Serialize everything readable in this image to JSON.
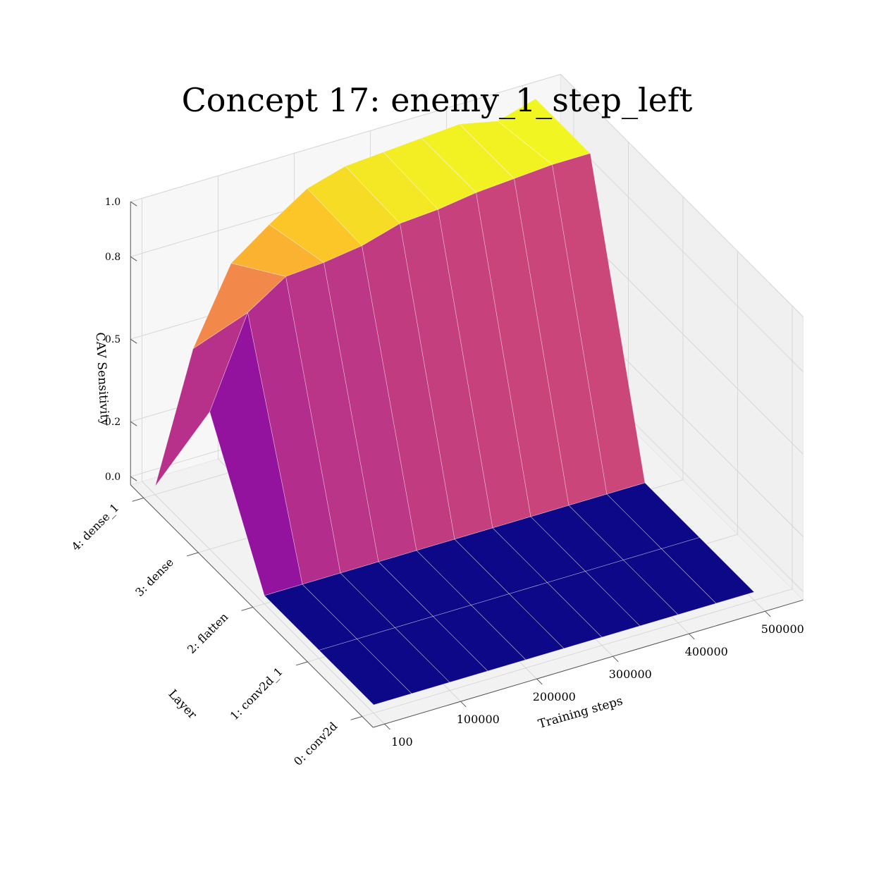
{
  "chart_data": {
    "type": "surface",
    "title": "Concept 17: enemy_1_step_left",
    "xlabel": "Training steps",
    "ylabel": "Layer",
    "zlabel": "CAV Sensitivity",
    "colormap": "plasma",
    "x_ticks": [
      "100",
      "100000",
      "200000",
      "300000",
      "400000",
      "500000"
    ],
    "y_ticks": [
      "0: conv2d",
      "1: conv2d_1",
      "2: flatten",
      "3: dense",
      "4: dense_1"
    ],
    "z_ticks": [
      "0.0",
      "0.2",
      "0.5",
      "0.8",
      "1.0"
    ],
    "x": [
      100,
      50000,
      100000,
      150000,
      200000,
      250000,
      300000,
      350000,
      400000,
      450000,
      500000
    ],
    "layers": [
      0,
      1,
      2,
      3,
      4
    ],
    "z_range": [
      0,
      1
    ],
    "z": [
      [
        0.0,
        0.0,
        0.0,
        0.0,
        0.0,
        0.0,
        0.0,
        0.0,
        0.0,
        0.0,
        0.0
      ],
      [
        0.0,
        0.0,
        0.0,
        0.0,
        0.0,
        0.0,
        0.0,
        0.0,
        0.0,
        0.0,
        0.0
      ],
      [
        0.0,
        0.0,
        0.0,
        0.0,
        0.0,
        0.0,
        0.0,
        0.0,
        0.0,
        0.0,
        0.0
      ],
      [
        0.47,
        0.79,
        0.88,
        0.89,
        0.91,
        0.95,
        0.96,
        0.98,
        0.99,
        1.0,
        1.0
      ],
      [
        0.0,
        0.46,
        0.73,
        0.83,
        0.92,
        0.96,
        0.97,
        0.98,
        0.99,
        0.96,
        1.0
      ]
    ]
  }
}
